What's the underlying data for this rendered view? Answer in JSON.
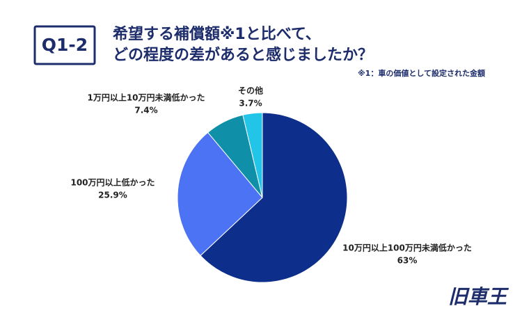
{
  "chart_data": {
    "type": "pie",
    "badge": "Q1-2",
    "title": "希望する補償額※1と比べて、",
    "subtitle": "どの程度の差があると感じましたか？",
    "note": "※1：車の価値として設定された金額",
    "categories": [
      "10万円以上100万円未満低かった",
      "100万円以上低かった",
      "1万円以上10万円未満低かった",
      "その他"
    ],
    "values": [
      63,
      25.9,
      7.4,
      3.7
    ],
    "value_labels": [
      "63%",
      "25.9%",
      "7.4%",
      "3.7%"
    ],
    "colors": [
      "#0d2e8a",
      "#4b73f4",
      "#0f8fa8",
      "#22c4e8"
    ],
    "start_angle": 0,
    "direction": "clockwise"
  },
  "logo": "旧車王"
}
